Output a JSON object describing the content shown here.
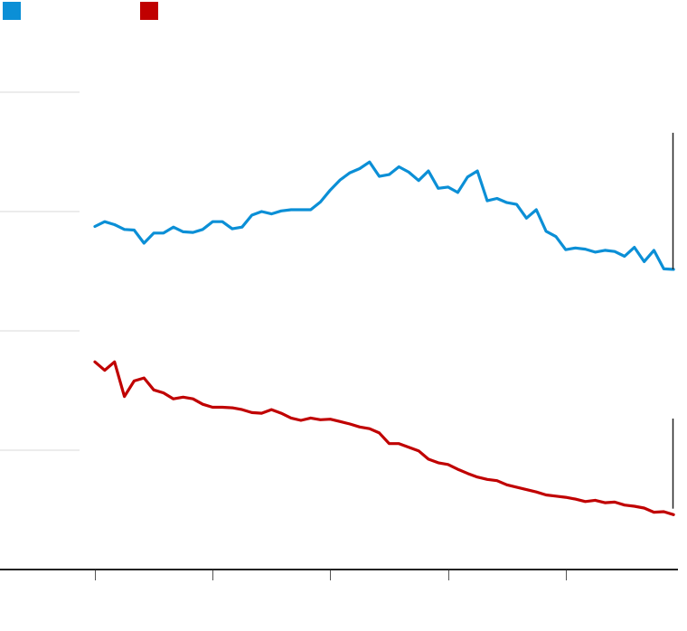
{
  "colors": {
    "series_blue": "#0b8fd6",
    "series_red": "#c00000",
    "grid": "#d9d9d9",
    "axis": "#222222",
    "annotation": "#222222"
  },
  "chart_data": {
    "type": "line",
    "title": "",
    "xlabel": "",
    "ylabel": "",
    "ylim": [
      0,
      100
    ],
    "x_range": [
      0,
      59
    ],
    "y_gridlines": [
      20,
      40,
      60,
      80
    ],
    "x_ticks": [
      0,
      12,
      24,
      36,
      48
    ],
    "grid": true,
    "legend": "top-left",
    "series": [
      {
        "color": "#0b8fd6",
        "values": [
          57.5,
          58.3,
          57.8,
          57.0,
          56.9,
          54.7,
          56.4,
          56.4,
          57.4,
          56.6,
          56.5,
          57.0,
          58.3,
          58.3,
          57.1,
          57.4,
          59.4,
          60.0,
          59.6,
          60.1,
          60.3,
          60.3,
          60.3,
          61.6,
          63.6,
          65.3,
          66.5,
          67.2,
          68.3,
          65.9,
          66.2,
          67.5,
          66.6,
          65.2,
          66.8,
          63.9,
          64.1,
          63.2,
          65.8,
          66.8,
          61.8,
          62.2,
          61.5,
          61.2,
          58.9,
          60.3,
          56.7,
          55.8,
          53.6,
          53.9,
          53.7,
          53.2,
          53.5,
          53.3,
          52.5,
          54.0,
          51.6,
          53.5,
          50.4,
          50.3
        ]
      },
      {
        "color": "#c00000",
        "values": [
          34.8,
          33.4,
          34.8,
          29.0,
          31.6,
          32.1,
          30.1,
          29.6,
          28.6,
          28.9,
          28.6,
          27.7,
          27.2,
          27.2,
          27.1,
          26.8,
          26.3,
          26.2,
          26.8,
          26.2,
          25.4,
          25.0,
          25.4,
          25.1,
          25.2,
          24.8,
          24.4,
          23.9,
          23.6,
          22.9,
          21.1,
          21.1,
          20.5,
          19.9,
          18.5,
          17.9,
          17.6,
          16.8,
          16.1,
          15.5,
          15.1,
          14.9,
          14.2,
          13.8,
          13.4,
          13.0,
          12.5,
          12.3,
          12.1,
          11.8,
          11.4,
          11.6,
          11.2,
          11.3,
          10.8,
          10.6,
          10.3,
          9.6,
          9.7,
          9.2
        ]
      }
    ],
    "annotations": [
      {
        "series": 0,
        "y_top": 73.2,
        "y_bottom": 50.3
      },
      {
        "series": 1,
        "y_top": 25.3,
        "y_bottom": 10.2
      }
    ]
  }
}
